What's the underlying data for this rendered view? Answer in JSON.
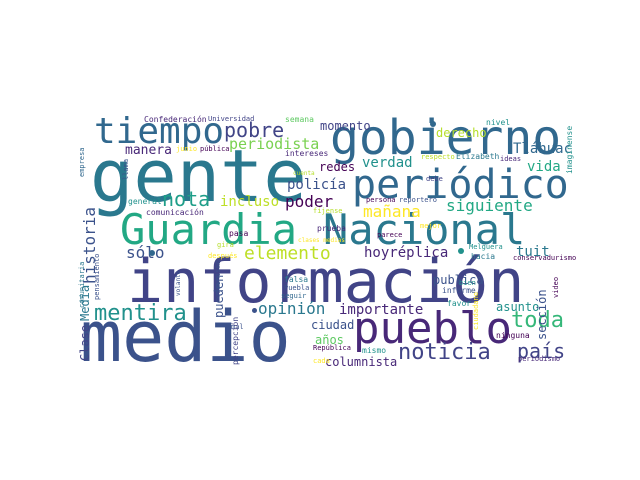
{
  "words": [
    {
      "text": "información",
      "color": "#414487"
    },
    {
      "text": "gente",
      "color": "#2a788e"
    },
    {
      "text": "medio",
      "color": "#3b528b"
    },
    {
      "text": "Guardia",
      "color": "#22a884"
    },
    {
      "text": "Nacional",
      "color": "#2a788e"
    },
    {
      "text": "gobierno",
      "color": "#31688e"
    },
    {
      "text": "periódico",
      "color": "#31688e"
    },
    {
      "text": "pueblo",
      "color": "#482878"
    },
    {
      "text": "tiempo",
      "color": "#31688e"
    },
    {
      "text": "noticia",
      "color": "#414487"
    },
    {
      "text": "mentira",
      "color": "#21918c"
    },
    {
      "text": "elemento",
      "color": "#bddf26"
    },
    {
      "text": "pobre",
      "color": "#414487"
    },
    {
      "text": "nota",
      "color": "#1f9e89"
    },
    {
      "text": "toda",
      "color": "#35b779"
    },
    {
      "text": "país",
      "color": "#414487"
    },
    {
      "text": "opinión",
      "color": "#2a788e"
    },
    {
      "text": "sólo",
      "color": "#3b528b"
    },
    {
      "text": "poder",
      "color": "#440154"
    },
    {
      "text": "siguiente",
      "color": "#22a884"
    },
    {
      "text": "mañana",
      "color": "#fde725"
    },
    {
      "text": "periodista",
      "color": "#7ad151"
    },
    {
      "text": "historia",
      "color": "#3b528b"
    },
    {
      "text": "verdad",
      "color": "#21918c"
    },
    {
      "text": "incluso",
      "color": "#bddf26"
    },
    {
      "text": "policía",
      "color": "#3b528b"
    },
    {
      "text": "importante",
      "color": "#482878"
    },
    {
      "text": "hoyréplica",
      "color": "#482878"
    },
    {
      "text": "Tláhuac",
      "color": "#31688e"
    },
    {
      "text": "manera",
      "color": "#482878"
    },
    {
      "text": "vida",
      "color": "#22a884"
    },
    {
      "text": "derecho",
      "color": "#b5de2b"
    },
    {
      "text": "momento",
      "color": "#414487"
    },
    {
      "text": "tuit",
      "color": "#2a788e"
    },
    {
      "text": "columnista",
      "color": "#482878"
    },
    {
      "text": "publica",
      "color": "#3b528b"
    },
    {
      "text": "asunto",
      "color": "#21918c"
    },
    {
      "text": "ciudad",
      "color": "#3b528b"
    },
    {
      "text": "años",
      "color": "#5ec962"
    },
    {
      "text": "redes",
      "color": "#440154"
    },
    {
      "text": "pueden",
      "color": "#3b528b"
    },
    {
      "text": "sección",
      "color": "#3b528b"
    },
    {
      "text": "Media",
      "color": "#2a788e"
    },
    {
      "text": "Clase",
      "color": "#414487"
    },
    {
      "text": "Confederación",
      "color": "#482878"
    },
    {
      "text": "Universidad",
      "color": "#414487"
    },
    {
      "text": "semana",
      "color": "#5ec962"
    },
    {
      "text": "nivel",
      "color": "#21918c"
    },
    {
      "text": "imagínense",
      "color": "#21918c"
    },
    {
      "text": "intereses",
      "color": "#482878"
    },
    {
      "text": "respecto",
      "color": "#bddf26"
    },
    {
      "text": "Elizabeth",
      "color": "#2a788e"
    },
    {
      "text": "ideas",
      "color": "#482878"
    },
    {
      "text": "junio",
      "color": "#fde725"
    },
    {
      "text": "pública",
      "color": "#440154"
    },
    {
      "text": "llama",
      "color": "#3b528b"
    },
    {
      "text": "debe",
      "color": "#414487"
    },
    {
      "text": "persona",
      "color": "#440154"
    },
    {
      "text": "reportero",
      "color": "#3b528b"
    },
    {
      "text": "general",
      "color": "#21918c"
    },
    {
      "text": "pasa",
      "color": "#440154"
    },
    {
      "text": "comunicación",
      "color": "#482878"
    },
    {
      "text": "fíjense",
      "color": "#b5de2b"
    },
    {
      "text": "mejor",
      "color": "#fde725"
    },
    {
      "text": "prueba",
      "color": "#482878"
    },
    {
      "text": "parece",
      "color": "#440154"
    },
    {
      "text": "Melguera",
      "color": "#21918c"
    },
    {
      "text": "conservadurismo",
      "color": "#440154"
    },
    {
      "text": "hacia",
      "color": "#2a788e"
    },
    {
      "text": "informe",
      "color": "#3b528b"
    },
    {
      "text": "bien",
      "color": "#21918c"
    },
    {
      "text": "favor",
      "color": "#21918c"
    },
    {
      "text": "ciudadano",
      "color": "#fde725"
    },
    {
      "text": "video",
      "color": "#440154"
    },
    {
      "text": "ninguna",
      "color": "#440154"
    },
    {
      "text": "periodismo",
      "color": "#482878"
    },
    {
      "text": "República",
      "color": "#440154"
    },
    {
      "text": "mismo",
      "color": "#21918c"
    },
    {
      "text": "cada",
      "color": "#fde725"
    },
    {
      "text": "falsa",
      "color": "#2a788e"
    },
    {
      "text": "Puebla",
      "color": "#3b528b"
    },
    {
      "text": "seguir",
      "color": "#31688e"
    },
    {
      "text": "mal",
      "color": "#3b528b"
    },
    {
      "text": "percepción",
      "color": "#414487"
    },
    {
      "text": "comunismo",
      "color": "#3b528b"
    },
    {
      "text": "después",
      "color": "#fde725"
    },
    {
      "text": "gira",
      "color": "#b5de2b"
    },
    {
      "text": "volante",
      "color": "#3b528b"
    },
    {
      "text": "pensamiento",
      "color": "#3b528b"
    },
    {
      "text": "comunitaria",
      "color": "#2a788e"
    },
    {
      "text": "empresa",
      "color": "#31688e"
    },
    {
      "text": "clases medias",
      "color": "#fde725"
    },
    {
      "text": "cuenta",
      "color": "#b5de2b"
    }
  ]
}
